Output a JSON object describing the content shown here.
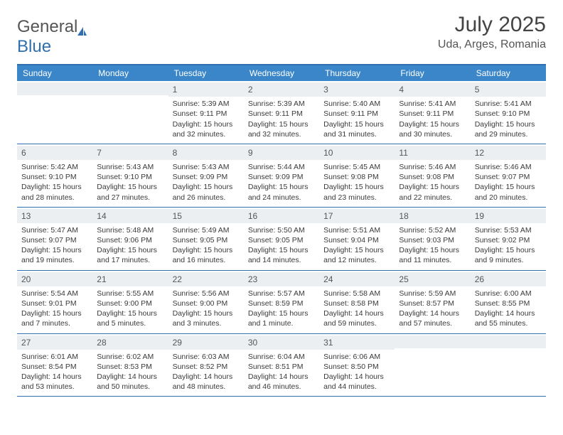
{
  "logo": {
    "text_gray": "General",
    "text_blue": "Blue"
  },
  "title": "July 2025",
  "location": "Uda, Arges, Romania",
  "colors": {
    "header_bar": "#3a86c8",
    "border": "#2f6fb0",
    "daynum_bg": "#eceff2",
    "text": "#3a3a3a",
    "logo_gray": "#555555",
    "logo_blue": "#2f6fb0"
  },
  "fonts": {
    "title_size": 30,
    "location_size": 16,
    "weekday_size": 12,
    "cell_size": 10.5
  },
  "weekdays": [
    "Sunday",
    "Monday",
    "Tuesday",
    "Wednesday",
    "Thursday",
    "Friday",
    "Saturday"
  ],
  "weeks": [
    [
      {
        "n": "",
        "sr": "",
        "ss": "",
        "dl": ""
      },
      {
        "n": "",
        "sr": "",
        "ss": "",
        "dl": ""
      },
      {
        "n": "1",
        "sr": "Sunrise: 5:39 AM",
        "ss": "Sunset: 9:11 PM",
        "dl": "Daylight: 15 hours and 32 minutes."
      },
      {
        "n": "2",
        "sr": "Sunrise: 5:39 AM",
        "ss": "Sunset: 9:11 PM",
        "dl": "Daylight: 15 hours and 32 minutes."
      },
      {
        "n": "3",
        "sr": "Sunrise: 5:40 AM",
        "ss": "Sunset: 9:11 PM",
        "dl": "Daylight: 15 hours and 31 minutes."
      },
      {
        "n": "4",
        "sr": "Sunrise: 5:41 AM",
        "ss": "Sunset: 9:11 PM",
        "dl": "Daylight: 15 hours and 30 minutes."
      },
      {
        "n": "5",
        "sr": "Sunrise: 5:41 AM",
        "ss": "Sunset: 9:10 PM",
        "dl": "Daylight: 15 hours and 29 minutes."
      }
    ],
    [
      {
        "n": "6",
        "sr": "Sunrise: 5:42 AM",
        "ss": "Sunset: 9:10 PM",
        "dl": "Daylight: 15 hours and 28 minutes."
      },
      {
        "n": "7",
        "sr": "Sunrise: 5:43 AM",
        "ss": "Sunset: 9:10 PM",
        "dl": "Daylight: 15 hours and 27 minutes."
      },
      {
        "n": "8",
        "sr": "Sunrise: 5:43 AM",
        "ss": "Sunset: 9:09 PM",
        "dl": "Daylight: 15 hours and 26 minutes."
      },
      {
        "n": "9",
        "sr": "Sunrise: 5:44 AM",
        "ss": "Sunset: 9:09 PM",
        "dl": "Daylight: 15 hours and 24 minutes."
      },
      {
        "n": "10",
        "sr": "Sunrise: 5:45 AM",
        "ss": "Sunset: 9:08 PM",
        "dl": "Daylight: 15 hours and 23 minutes."
      },
      {
        "n": "11",
        "sr": "Sunrise: 5:46 AM",
        "ss": "Sunset: 9:08 PM",
        "dl": "Daylight: 15 hours and 22 minutes."
      },
      {
        "n": "12",
        "sr": "Sunrise: 5:46 AM",
        "ss": "Sunset: 9:07 PM",
        "dl": "Daylight: 15 hours and 20 minutes."
      }
    ],
    [
      {
        "n": "13",
        "sr": "Sunrise: 5:47 AM",
        "ss": "Sunset: 9:07 PM",
        "dl": "Daylight: 15 hours and 19 minutes."
      },
      {
        "n": "14",
        "sr": "Sunrise: 5:48 AM",
        "ss": "Sunset: 9:06 PM",
        "dl": "Daylight: 15 hours and 17 minutes."
      },
      {
        "n": "15",
        "sr": "Sunrise: 5:49 AM",
        "ss": "Sunset: 9:05 PM",
        "dl": "Daylight: 15 hours and 16 minutes."
      },
      {
        "n": "16",
        "sr": "Sunrise: 5:50 AM",
        "ss": "Sunset: 9:05 PM",
        "dl": "Daylight: 15 hours and 14 minutes."
      },
      {
        "n": "17",
        "sr": "Sunrise: 5:51 AM",
        "ss": "Sunset: 9:04 PM",
        "dl": "Daylight: 15 hours and 12 minutes."
      },
      {
        "n": "18",
        "sr": "Sunrise: 5:52 AM",
        "ss": "Sunset: 9:03 PM",
        "dl": "Daylight: 15 hours and 11 minutes."
      },
      {
        "n": "19",
        "sr": "Sunrise: 5:53 AM",
        "ss": "Sunset: 9:02 PM",
        "dl": "Daylight: 15 hours and 9 minutes."
      }
    ],
    [
      {
        "n": "20",
        "sr": "Sunrise: 5:54 AM",
        "ss": "Sunset: 9:01 PM",
        "dl": "Daylight: 15 hours and 7 minutes."
      },
      {
        "n": "21",
        "sr": "Sunrise: 5:55 AM",
        "ss": "Sunset: 9:00 PM",
        "dl": "Daylight: 15 hours and 5 minutes."
      },
      {
        "n": "22",
        "sr": "Sunrise: 5:56 AM",
        "ss": "Sunset: 9:00 PM",
        "dl": "Daylight: 15 hours and 3 minutes."
      },
      {
        "n": "23",
        "sr": "Sunrise: 5:57 AM",
        "ss": "Sunset: 8:59 PM",
        "dl": "Daylight: 15 hours and 1 minute."
      },
      {
        "n": "24",
        "sr": "Sunrise: 5:58 AM",
        "ss": "Sunset: 8:58 PM",
        "dl": "Daylight: 14 hours and 59 minutes."
      },
      {
        "n": "25",
        "sr": "Sunrise: 5:59 AM",
        "ss": "Sunset: 8:57 PM",
        "dl": "Daylight: 14 hours and 57 minutes."
      },
      {
        "n": "26",
        "sr": "Sunrise: 6:00 AM",
        "ss": "Sunset: 8:55 PM",
        "dl": "Daylight: 14 hours and 55 minutes."
      }
    ],
    [
      {
        "n": "27",
        "sr": "Sunrise: 6:01 AM",
        "ss": "Sunset: 8:54 PM",
        "dl": "Daylight: 14 hours and 53 minutes."
      },
      {
        "n": "28",
        "sr": "Sunrise: 6:02 AM",
        "ss": "Sunset: 8:53 PM",
        "dl": "Daylight: 14 hours and 50 minutes."
      },
      {
        "n": "29",
        "sr": "Sunrise: 6:03 AM",
        "ss": "Sunset: 8:52 PM",
        "dl": "Daylight: 14 hours and 48 minutes."
      },
      {
        "n": "30",
        "sr": "Sunrise: 6:04 AM",
        "ss": "Sunset: 8:51 PM",
        "dl": "Daylight: 14 hours and 46 minutes."
      },
      {
        "n": "31",
        "sr": "Sunrise: 6:06 AM",
        "ss": "Sunset: 8:50 PM",
        "dl": "Daylight: 14 hours and 44 minutes."
      },
      {
        "n": "",
        "sr": "",
        "ss": "",
        "dl": ""
      },
      {
        "n": "",
        "sr": "",
        "ss": "",
        "dl": ""
      }
    ]
  ]
}
